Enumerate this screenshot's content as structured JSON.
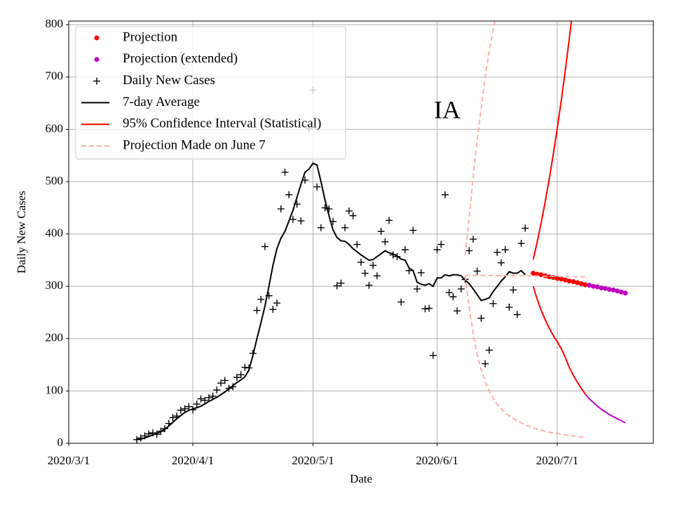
{
  "chart_data": {
    "type": "line",
    "annotation": "IA",
    "xlabel": "Date",
    "ylabel": "Daily New Cases",
    "xlim": [
      "2020-03-01",
      "2020-07-25"
    ],
    "xticks": [
      {
        "value": "2020-03-01",
        "label": "2020/3/1"
      },
      {
        "value": "2020-04-01",
        "label": "2020/4/1"
      },
      {
        "value": "2020-05-01",
        "label": "2020/5/1"
      },
      {
        "value": "2020-06-01",
        "label": "2020/6/1"
      },
      {
        "value": "2020-07-01",
        "label": "2020/7/1"
      }
    ],
    "ylim": [
      0,
      807
    ],
    "yticks": [
      0,
      100,
      200,
      300,
      400,
      500,
      600,
      700,
      800
    ],
    "grid": true,
    "legend": "upper left",
    "x": [
      "2020-03-18",
      "2020-03-19",
      "2020-03-20",
      "2020-03-21",
      "2020-03-22",
      "2020-03-23",
      "2020-03-24",
      "2020-03-25",
      "2020-03-26",
      "2020-03-27",
      "2020-03-28",
      "2020-03-29",
      "2020-03-30",
      "2020-03-31",
      "2020-04-01",
      "2020-04-02",
      "2020-04-03",
      "2020-04-04",
      "2020-04-05",
      "2020-04-06",
      "2020-04-07",
      "2020-04-08",
      "2020-04-09",
      "2020-04-10",
      "2020-04-11",
      "2020-04-12",
      "2020-04-13",
      "2020-04-14",
      "2020-04-15",
      "2020-04-16",
      "2020-04-17",
      "2020-04-18",
      "2020-04-19",
      "2020-04-20",
      "2020-04-21",
      "2020-04-22",
      "2020-04-23",
      "2020-04-24",
      "2020-04-25",
      "2020-04-26",
      "2020-04-27",
      "2020-04-28",
      "2020-04-29",
      "2020-04-30",
      "2020-05-01",
      "2020-05-02",
      "2020-05-03",
      "2020-05-04",
      "2020-05-05",
      "2020-05-06",
      "2020-05-07",
      "2020-05-08",
      "2020-05-09",
      "2020-05-10",
      "2020-05-11",
      "2020-05-12",
      "2020-05-13",
      "2020-05-14",
      "2020-05-15",
      "2020-05-16",
      "2020-05-17",
      "2020-05-18",
      "2020-05-19",
      "2020-05-20",
      "2020-05-21",
      "2020-05-22",
      "2020-05-23",
      "2020-05-24",
      "2020-05-25",
      "2020-05-26",
      "2020-05-27",
      "2020-05-28",
      "2020-05-29",
      "2020-05-30",
      "2020-05-31",
      "2020-06-01",
      "2020-06-02",
      "2020-06-03",
      "2020-06-04",
      "2020-06-05",
      "2020-06-06",
      "2020-06-07",
      "2020-06-08",
      "2020-06-09",
      "2020-06-10",
      "2020-06-11",
      "2020-06-12",
      "2020-06-13",
      "2020-06-14",
      "2020-06-15",
      "2020-06-16",
      "2020-06-17",
      "2020-06-18",
      "2020-06-19",
      "2020-06-20",
      "2020-06-21",
      "2020-06-22",
      "2020-06-23"
    ],
    "series": [
      {
        "name": "Projection",
        "style": "dot",
        "color": "#ff0000",
        "x": [
          "2020-06-25",
          "2020-06-26",
          "2020-06-27",
          "2020-06-28",
          "2020-06-29",
          "2020-06-30",
          "2020-07-01",
          "2020-07-02",
          "2020-07-03",
          "2020-07-04",
          "2020-07-05",
          "2020-07-06",
          "2020-07-07",
          "2020-07-08"
        ],
        "values": [
          325,
          323,
          322,
          320,
          318,
          317,
          315,
          314,
          312,
          310,
          309,
          307,
          305,
          303
        ]
      },
      {
        "name": "Projection (extended)",
        "style": "dot",
        "color": "#bf00bf",
        "x": [
          "2020-07-09",
          "2020-07-10",
          "2020-07-11",
          "2020-07-12",
          "2020-07-13",
          "2020-07-14",
          "2020-07-15",
          "2020-07-16",
          "2020-07-17",
          "2020-07-18"
        ],
        "values": [
          302,
          300,
          299,
          297,
          296,
          294,
          293,
          291,
          289,
          287
        ]
      },
      {
        "name": "Daily New Cases",
        "style": "plus",
        "color": "#000000",
        "values": [
          7,
          10,
          14,
          18,
          20,
          17,
          23,
          28,
          38,
          49,
          52,
          63,
          66,
          70,
          64,
          75,
          85,
          82,
          87,
          90,
          102,
          115,
          120,
          105,
          108,
          126,
          131,
          145,
          144,
          172,
          254,
          275,
          376,
          282,
          256,
          268,
          448,
          518,
          475,
          428,
          457,
          425,
          503,
          601,
          675,
          490,
          412,
          450,
          448,
          424,
          301,
          306,
          412,
          444,
          435,
          380,
          346,
          325,
          302,
          340,
          320,
          405,
          385,
          426,
          360,
          357,
          270,
          370,
          330,
          407,
          295,
          326,
          257,
          258,
          168,
          370,
          380,
          475,
          288,
          280,
          253,
          295,
          313,
          368,
          390,
          329,
          239,
          152,
          178,
          267,
          365,
          345,
          370,
          260,
          293,
          246,
          382,
          411
        ]
      },
      {
        "name": "7-day Average",
        "style": "line",
        "color": "#000000",
        "values": [
          7,
          8,
          10,
          13,
          16,
          19,
          22,
          27,
          33,
          40,
          47,
          53,
          59,
          63,
          66,
          68,
          71,
          75,
          80,
          84,
          88,
          93,
          98,
          104,
          110,
          116,
          121,
          127,
          140,
          168,
          200,
          230,
          262,
          300,
          340,
          372,
          392,
          405,
          425,
          445,
          470,
          495,
          518,
          524,
          535,
          532,
          500,
          465,
          435,
          408,
          393,
          387,
          386,
          380,
          372,
          366,
          360,
          355,
          350,
          351,
          357,
          362,
          368,
          364,
          362,
          358,
          352,
          350,
          335,
          330,
          308,
          304,
          302,
          305,
          300,
          316,
          316,
          322,
          320,
          322,
          322,
          320,
          312,
          305,
          295,
          284,
          273,
          275,
          278,
          290,
          300,
          310,
          318,
          328,
          325,
          325,
          330,
          322
        ]
      },
      {
        "name": "95% Confidence Interval (Statistical)",
        "style": "line",
        "color": "#ff0000",
        "x": [
          "2020-06-25",
          "2020-06-26",
          "2020-06-27",
          "2020-06-28",
          "2020-06-29",
          "2020-06-30",
          "2020-07-01",
          "2020-07-02",
          "2020-07-03",
          "2020-07-04",
          "2020-07-05"
        ],
        "values": [
          351,
          385,
          422,
          462,
          505,
          552,
          602,
          655,
          712,
          773,
          838
        ]
      },
      {
        "style": "line",
        "color": "#ff0000",
        "x": [
          "2020-06-25",
          "2020-06-26",
          "2020-06-27",
          "2020-06-28",
          "2020-06-29",
          "2020-06-30",
          "2020-07-01",
          "2020-07-02",
          "2020-07-03",
          "2020-07-04",
          "2020-07-05",
          "2020-07-06",
          "2020-07-07",
          "2020-07-08"
        ],
        "values": [
          300,
          275,
          254,
          236,
          220,
          206,
          194,
          181,
          164,
          145,
          130,
          117,
          105,
          94
        ]
      },
      {
        "style": "line",
        "color": "#bf00bf",
        "x": [
          "2020-07-08",
          "2020-07-09",
          "2020-07-10",
          "2020-07-11",
          "2020-07-12",
          "2020-07-13",
          "2020-07-14",
          "2020-07-15",
          "2020-07-16",
          "2020-07-17",
          "2020-07-18"
        ],
        "values": [
          94,
          85,
          78,
          71,
          65,
          60,
          55,
          51,
          47,
          43,
          39
        ]
      },
      {
        "name": "Projection Made on June 7",
        "style": "dash",
        "color": "#ffb0b0",
        "x": [
          "2020-06-08",
          "2020-06-09",
          "2020-06-10",
          "2020-06-11",
          "2020-06-12",
          "2020-06-13",
          "2020-06-14",
          "2020-06-15",
          "2020-06-16"
        ],
        "values": [
          360,
          430,
          510,
          580,
          640,
          700,
          750,
          790,
          830
        ]
      },
      {
        "style": "dash",
        "color": "#ffb0b0",
        "x": [
          "2020-06-08",
          "2020-06-23",
          "2020-07-08"
        ],
        "values": [
          321,
          320,
          318
        ]
      },
      {
        "style": "dash",
        "color": "#ffb0b0",
        "x": [
          "2020-06-08",
          "2020-06-09",
          "2020-06-10",
          "2020-06-11",
          "2020-06-12",
          "2020-06-13",
          "2020-06-14",
          "2020-06-15",
          "2020-06-16",
          "2020-06-18",
          "2020-06-20",
          "2020-06-23",
          "2020-06-26",
          "2020-06-29",
          "2020-07-02",
          "2020-07-05",
          "2020-07-08"
        ],
        "values": [
          320,
          260,
          210,
          170,
          140,
          118,
          100,
          86,
          74,
          58,
          47,
          35,
          27,
          21,
          17,
          14,
          11
        ]
      }
    ]
  }
}
